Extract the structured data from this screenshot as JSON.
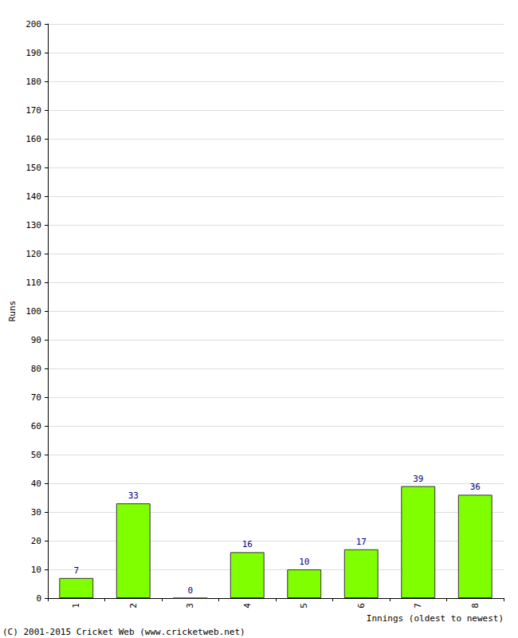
{
  "chart_data": {
    "type": "bar",
    "categories": [
      "1",
      "2",
      "3",
      "4",
      "5",
      "6",
      "7",
      "8"
    ],
    "values": [
      7,
      33,
      0,
      16,
      10,
      17,
      39,
      36
    ],
    "color": "#80ff00",
    "x_label": "Innings (oldest to newest)",
    "y_label": "Runs",
    "annotations": [
      "(C) 2001-2015 Cricket Web (www.cricketweb.net)"
    ],
    "ylim": [
      0,
      200
    ],
    "yticks": [
      0,
      10,
      20,
      30,
      40,
      50,
      60,
      70,
      80,
      90,
      100,
      110,
      120,
      130,
      140,
      150,
      160,
      170,
      180,
      190,
      200
    ],
    "grid": true,
    "data_labels": true
  }
}
